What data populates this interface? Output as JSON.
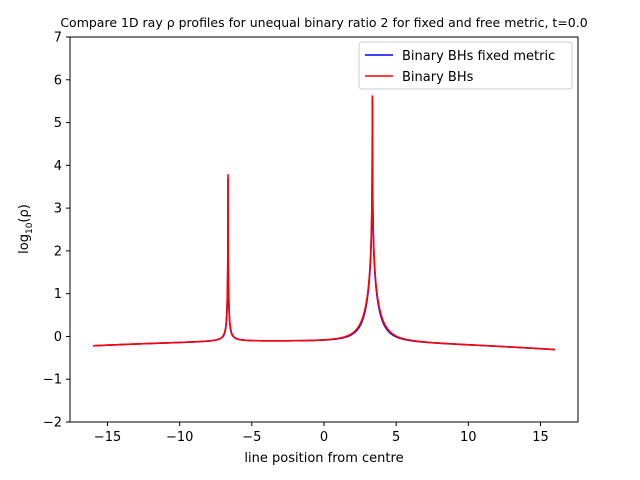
{
  "chart_data": {
    "type": "line",
    "title": "Compare 1D ray ρ profiles for unequal binary ratio 2 for fixed and free metric, t=0.0",
    "xlabel": "line position from centre",
    "ylabel_base": "log",
    "ylabel_sub": "10",
    "ylabel_tail": "(ρ)",
    "xlim": [
      -17.6,
      17.6
    ],
    "ylim": [
      -2,
      7
    ],
    "xticks": [
      -15,
      -10,
      -5,
      0,
      5,
      10,
      15
    ],
    "xtick_labels": [
      "−15",
      "−10",
      "−5",
      "0",
      "5",
      "10",
      "15"
    ],
    "yticks": [
      -2,
      -1,
      0,
      1,
      2,
      3,
      4,
      5,
      6,
      7
    ],
    "ytick_labels": [
      "−2",
      "−1",
      "0",
      "1",
      "2",
      "3",
      "4",
      "5",
      "6",
      "7"
    ],
    "grid": false,
    "legend_position": "top-right",
    "x_range": [
      -16,
      16
    ],
    "peaks": [
      {
        "x": -6.65,
        "y": 3.78
      },
      {
        "x": 3.35,
        "y": 5.62
      }
    ],
    "series": [
      {
        "name": "Binary BHs fixed metric",
        "color": "#0000ff",
        "peak_values": [
          3.7,
          5.55
        ]
      },
      {
        "name": "Binary BHs",
        "color": "#ff0000",
        "peak_values": [
          3.78,
          5.62
        ]
      }
    ],
    "sample_points": [
      {
        "x": -16,
        "y": -0.23
      },
      {
        "x": -12,
        "y": -0.2
      },
      {
        "x": -10,
        "y": -0.17
      },
      {
        "x": -8,
        "y": -0.05
      },
      {
        "x": -7,
        "y": 0.5
      },
      {
        "x": -6.65,
        "y": 3.78
      },
      {
        "x": -6,
        "y": 0.1
      },
      {
        "x": -4,
        "y": -0.1
      },
      {
        "x": -2.5,
        "y": -0.13
      },
      {
        "x": 0,
        "y": -0.06
      },
      {
        "x": 2,
        "y": 0.15
      },
      {
        "x": 3,
        "y": 1.2
      },
      {
        "x": 3.35,
        "y": 5.62
      },
      {
        "x": 4,
        "y": 0.6
      },
      {
        "x": 6,
        "y": -0.03
      },
      {
        "x": 10,
        "y": -0.18
      },
      {
        "x": 16,
        "y": -0.24
      }
    ]
  }
}
